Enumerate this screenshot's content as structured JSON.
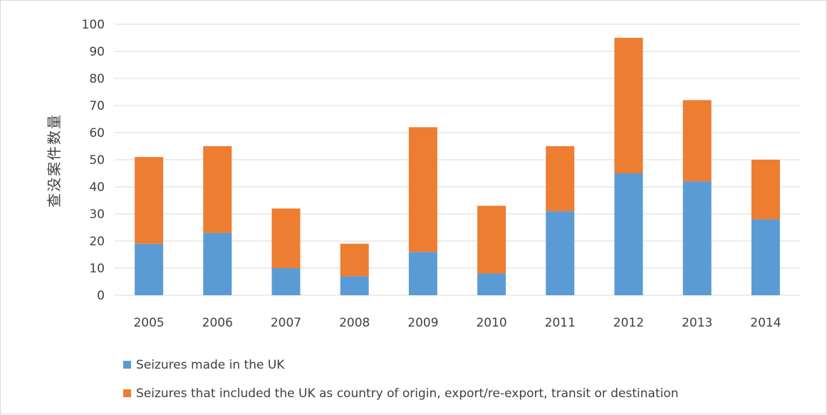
{
  "chart_data": {
    "type": "bar",
    "stacked": true,
    "categories": [
      "2005",
      "2006",
      "2007",
      "2008",
      "2009",
      "2010",
      "2011",
      "2012",
      "2013",
      "2014"
    ],
    "series": [
      {
        "name": "Seizures made in the UK",
        "values": [
          19,
          23,
          10,
          7,
          16,
          8,
          31,
          45,
          42,
          28
        ],
        "color": "#5b9bd5"
      },
      {
        "name": "Seizures that included the UK as country of origin, export/re-export, transit or destination",
        "values": [
          32,
          32,
          22,
          12,
          46,
          25,
          24,
          50,
          30,
          22
        ],
        "color": "#ed7d31"
      }
    ],
    "ylabel": "查没案件数量",
    "ylim": [
      0,
      100
    ],
    "yticks": [
      0,
      10,
      20,
      30,
      40,
      50,
      60,
      70,
      80,
      90,
      100
    ],
    "grid": true,
    "legend_position": "bottom-left"
  }
}
